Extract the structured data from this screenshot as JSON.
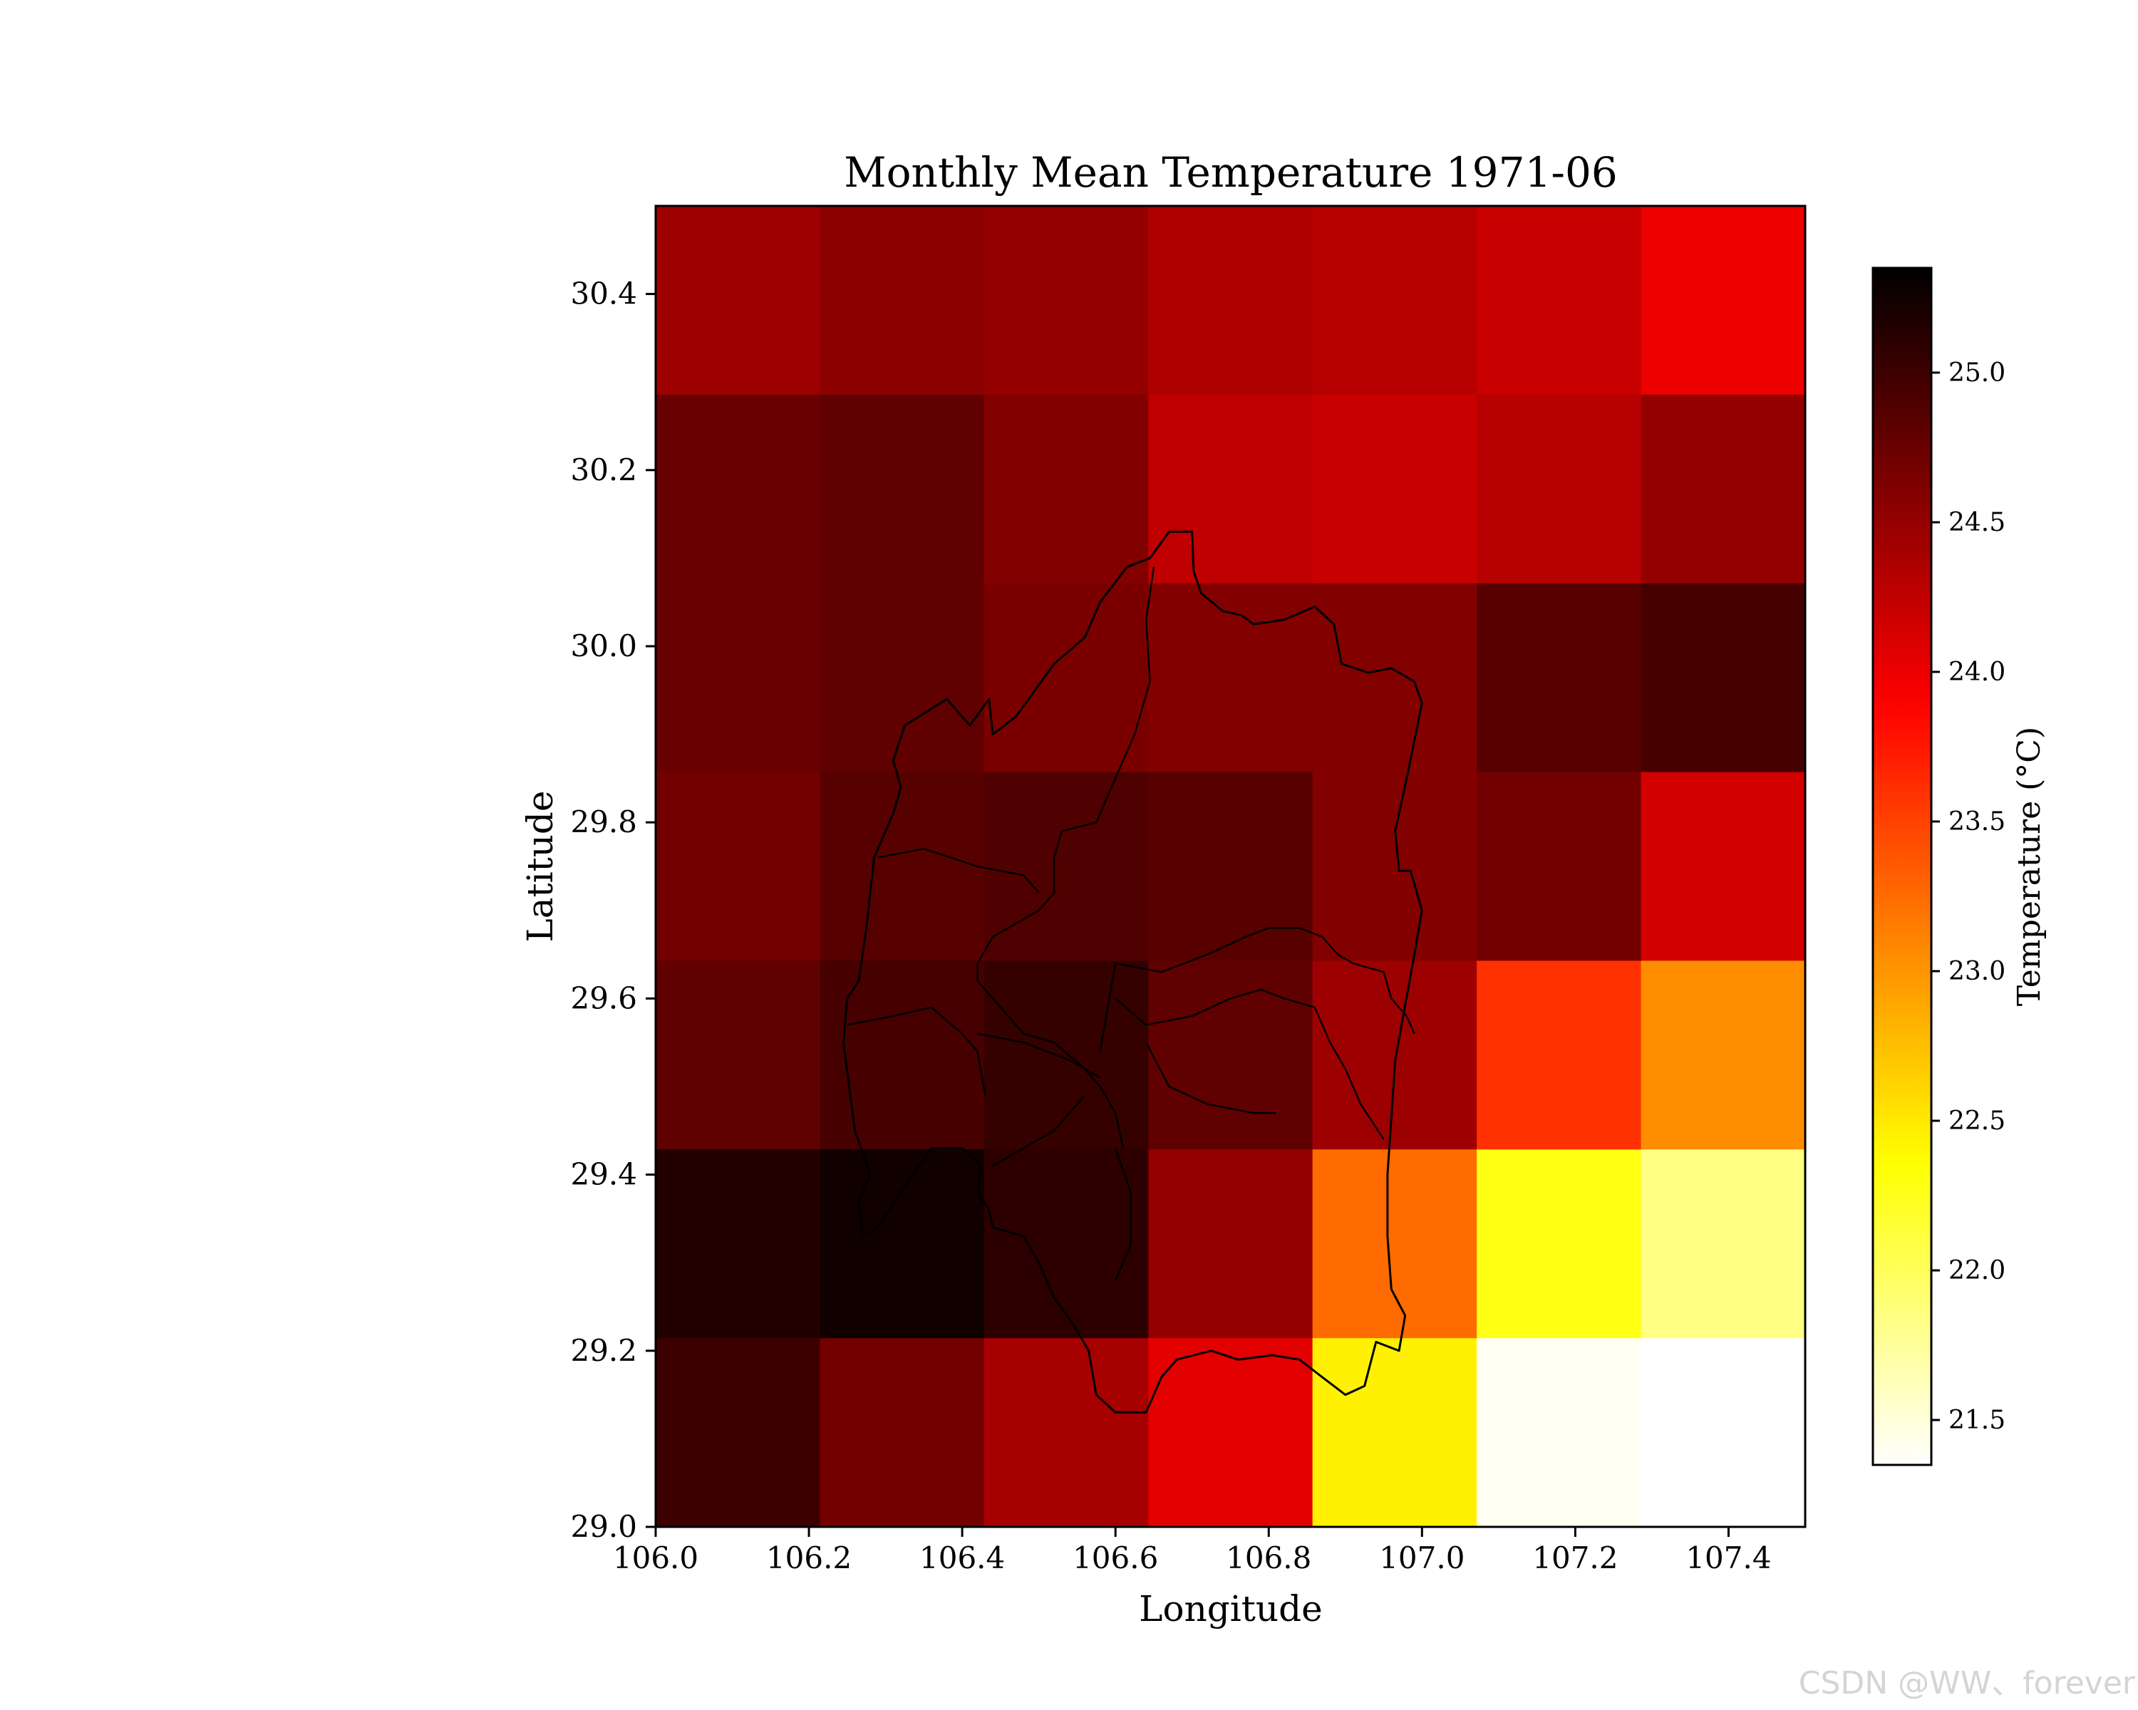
{
  "watermark": "CSDN @WW、forever",
  "chart_data": {
    "type": "heatmap",
    "title": "Monthly Mean Temperature 1971-06",
    "xlabel": "Longitude",
    "ylabel": "Latitude",
    "xlim": [
      106.0,
      107.5
    ],
    "ylim": [
      29.0,
      30.5
    ],
    "xticks": [
      106.0,
      106.2,
      106.4,
      106.6,
      106.8,
      107.0,
      107.2,
      107.4
    ],
    "xtick_labels": [
      "106.0",
      "106.2",
      "106.4",
      "106.6",
      "106.8",
      "107.0",
      "107.2",
      "107.4"
    ],
    "yticks": [
      29.0,
      29.2,
      29.4,
      29.6,
      29.8,
      30.0,
      30.2,
      30.4
    ],
    "ytick_labels": [
      "29.0",
      "29.2",
      "29.4",
      "29.6",
      "29.8",
      "30.0",
      "30.2",
      "30.4"
    ],
    "colormap": "hot_r",
    "colorbar": {
      "label": "Temperature (°C)",
      "vmin": 21.35,
      "vmax": 25.35,
      "ticks": [
        21.5,
        22.0,
        22.5,
        23.0,
        23.5,
        24.0,
        24.5,
        25.0
      ],
      "tick_labels": [
        "21.5",
        "22.0",
        "22.5",
        "23.0",
        "23.5",
        "24.0",
        "24.5",
        "25.0"
      ]
    },
    "grid": {
      "lon_edges": [
        106.0,
        106.2143,
        106.4286,
        106.6429,
        106.8571,
        107.0714,
        107.2857,
        107.5
      ],
      "lat_edges": [
        29.0,
        29.2143,
        29.4286,
        29.6429,
        29.8571,
        30.0714,
        30.2857,
        30.5
      ],
      "values_top_to_bottom": [
        [
          24.45,
          24.55,
          24.5,
          24.35,
          24.3,
          24.2,
          24.0
        ],
        [
          24.75,
          24.8,
          24.6,
          24.25,
          24.2,
          24.3,
          24.5
        ],
        [
          24.75,
          24.8,
          24.65,
          24.6,
          24.6,
          24.85,
          24.95
        ],
        [
          24.7,
          24.85,
          24.9,
          24.85,
          24.6,
          24.7,
          24.15
        ],
        [
          24.8,
          24.95,
          25.05,
          24.8,
          24.45,
          23.6,
          23.05
        ],
        [
          25.15,
          25.25,
          25.1,
          24.5,
          23.25,
          22.3,
          21.85
        ],
        [
          25.0,
          24.7,
          24.4,
          24.05,
          22.45,
          21.4,
          21.35
        ]
      ]
    },
    "boundary_lonlat": [
      [
        106.67,
        30.13
      ],
      [
        106.7,
        30.13
      ],
      [
        106.702,
        30.085
      ],
      [
        106.712,
        30.06
      ],
      [
        106.74,
        30.04
      ],
      [
        106.765,
        30.035
      ],
      [
        106.78,
        30.025
      ],
      [
        106.82,
        30.03
      ],
      [
        106.86,
        30.045
      ],
      [
        106.885,
        30.025
      ],
      [
        106.895,
        29.98
      ],
      [
        106.93,
        29.97
      ],
      [
        106.96,
        29.975
      ],
      [
        106.99,
        29.96
      ],
      [
        107.0,
        29.935
      ],
      [
        106.98,
        29.85
      ],
      [
        106.965,
        29.79
      ],
      [
        106.97,
        29.745
      ],
      [
        106.985,
        29.745
      ],
      [
        107.0,
        29.7
      ],
      [
        106.99,
        29.65
      ],
      [
        106.965,
        29.53
      ],
      [
        106.955,
        29.4
      ],
      [
        106.955,
        29.33
      ],
      [
        106.96,
        29.27
      ],
      [
        106.978,
        29.24
      ],
      [
        106.97,
        29.2
      ],
      [
        106.94,
        29.21
      ],
      [
        106.925,
        29.16
      ],
      [
        106.9,
        29.15
      ],
      [
        106.87,
        29.17
      ],
      [
        106.84,
        29.19
      ],
      [
        106.805,
        29.195
      ],
      [
        106.76,
        29.19
      ],
      [
        106.725,
        29.2
      ],
      [
        106.68,
        29.19
      ],
      [
        106.66,
        29.17
      ],
      [
        106.64,
        29.13
      ],
      [
        106.6,
        29.13
      ],
      [
        106.575,
        29.15
      ],
      [
        106.565,
        29.2
      ],
      [
        106.545,
        29.23
      ],
      [
        106.52,
        29.26
      ],
      [
        106.5,
        29.3
      ],
      [
        106.48,
        29.33
      ],
      [
        106.44,
        29.34
      ],
      [
        106.435,
        29.36
      ],
      [
        106.42,
        29.38
      ],
      [
        106.425,
        29.41
      ],
      [
        106.4,
        29.43
      ],
      [
        106.36,
        29.43
      ],
      [
        106.32,
        29.38
      ],
      [
        106.29,
        29.34
      ],
      [
        106.27,
        29.33
      ],
      [
        106.265,
        29.37
      ],
      [
        106.28,
        29.4
      ],
      [
        106.26,
        29.45
      ],
      [
        106.245,
        29.55
      ],
      [
        106.25,
        29.6
      ],
      [
        106.265,
        29.62
      ],
      [
        106.275,
        29.68
      ],
      [
        106.285,
        29.76
      ],
      [
        106.31,
        29.81
      ],
      [
        106.32,
        29.84
      ],
      [
        106.31,
        29.87
      ],
      [
        106.325,
        29.91
      ],
      [
        106.38,
        29.94
      ],
      [
        106.41,
        29.91
      ],
      [
        106.435,
        29.94
      ],
      [
        106.44,
        29.9
      ],
      [
        106.47,
        29.92
      ],
      [
        106.52,
        29.98
      ],
      [
        106.56,
        30.01
      ],
      [
        106.58,
        30.05
      ],
      [
        106.615,
        30.09
      ],
      [
        106.645,
        30.1
      ],
      [
        106.67,
        30.13
      ]
    ],
    "internal_lines_lonlat": [
      [
        [
          106.65,
          30.09
        ],
        [
          106.64,
          30.03
        ],
        [
          106.645,
          29.96
        ],
        [
          106.625,
          29.9
        ],
        [
          106.6,
          29.85
        ],
        [
          106.575,
          29.8
        ],
        [
          106.53,
          29.79
        ],
        [
          106.52,
          29.76
        ],
        [
          106.52,
          29.72
        ],
        [
          106.5,
          29.7
        ],
        [
          106.44,
          29.67
        ],
        [
          106.42,
          29.64
        ],
        [
          106.42,
          29.62
        ],
        [
          106.44,
          29.6
        ],
        [
          106.48,
          29.56
        ],
        [
          106.52,
          29.55
        ],
        [
          106.56,
          29.52
        ],
        [
          106.58,
          29.5
        ],
        [
          106.6,
          29.47
        ],
        [
          106.61,
          29.43
        ]
      ],
      [
        [
          106.29,
          29.76
        ],
        [
          106.35,
          29.77
        ],
        [
          106.42,
          29.75
        ],
        [
          106.48,
          29.74
        ],
        [
          106.5,
          29.72
        ]
      ],
      [
        [
          106.25,
          29.57
        ],
        [
          106.31,
          29.58
        ],
        [
          106.36,
          29.59
        ],
        [
          106.4,
          29.56
        ],
        [
          106.42,
          29.54
        ],
        [
          106.43,
          29.49
        ]
      ],
      [
        [
          106.42,
          29.56
        ],
        [
          106.48,
          29.55
        ],
        [
          106.54,
          29.53
        ],
        [
          106.58,
          29.51
        ]
      ],
      [
        [
          106.58,
          29.54
        ],
        [
          106.6,
          29.64
        ],
        [
          106.66,
          29.63
        ],
        [
          106.72,
          29.65
        ],
        [
          106.77,
          29.67
        ],
        [
          106.8,
          29.68
        ],
        [
          106.84,
          29.68
        ],
        [
          106.87,
          29.67
        ],
        [
          106.89,
          29.65
        ],
        [
          106.91,
          29.64
        ],
        [
          106.95,
          29.63
        ],
        [
          106.96,
          29.6
        ],
        [
          106.98,
          29.58
        ],
        [
          106.99,
          29.56
        ]
      ],
      [
        [
          106.6,
          29.6
        ],
        [
          106.64,
          29.57
        ],
        [
          106.7,
          29.58
        ],
        [
          106.75,
          29.6
        ],
        [
          106.79,
          29.61
        ],
        [
          106.82,
          29.6
        ],
        [
          106.86,
          29.59
        ],
        [
          106.88,
          29.55
        ],
        [
          106.9,
          29.52
        ],
        [
          106.92,
          29.48
        ],
        [
          106.95,
          29.44
        ]
      ],
      [
        [
          106.64,
          29.55
        ],
        [
          106.67,
          29.5
        ],
        [
          106.72,
          29.48
        ],
        [
          106.78,
          29.47
        ],
        [
          106.81,
          29.47
        ]
      ],
      [
        [
          106.44,
          29.41
        ],
        [
          106.48,
          29.43
        ],
        [
          106.52,
          29.45
        ],
        [
          106.56,
          29.49
        ]
      ],
      [
        [
          106.6,
          29.43
        ],
        [
          106.62,
          29.38
        ],
        [
          106.62,
          29.32
        ],
        [
          106.6,
          29.28
        ]
      ]
    ]
  }
}
